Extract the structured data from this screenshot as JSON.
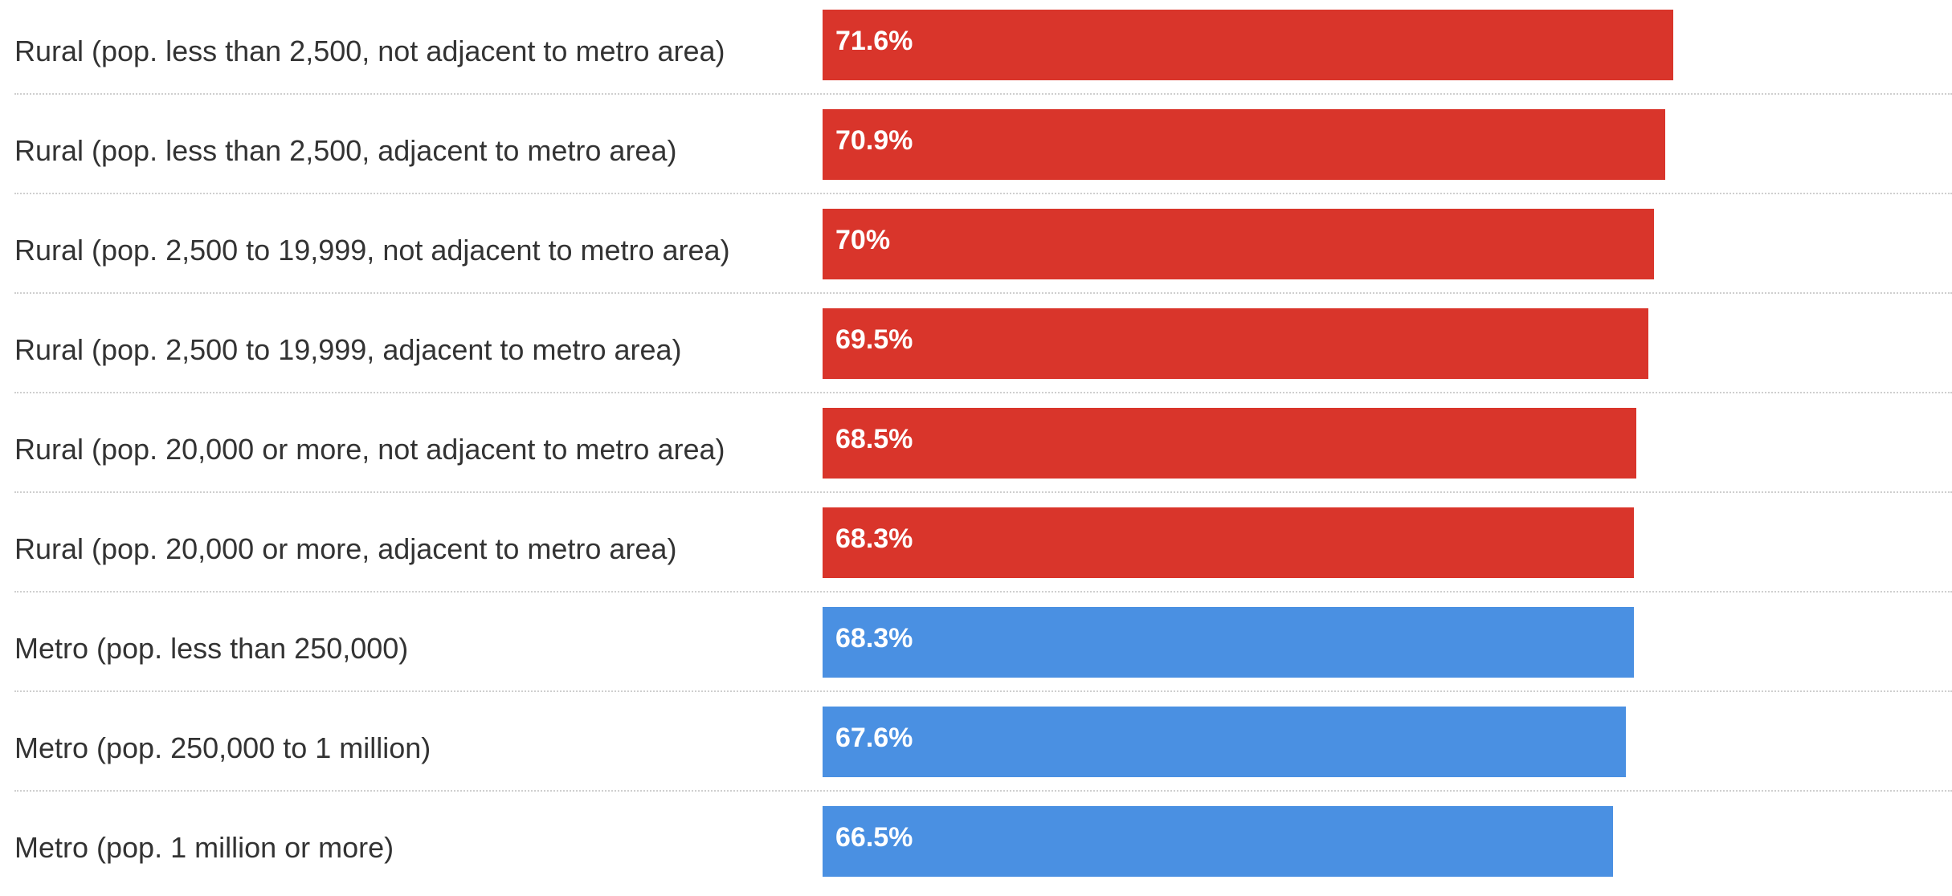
{
  "chart_data": {
    "type": "bar",
    "orientation": "horizontal",
    "categories": [
      "Rural (pop. less than 2,500, not adjacent to metro area)",
      "Rural (pop. less than 2,500, adjacent to metro area)",
      "Rural (pop. 2,500 to 19,999, not adjacent to metro area)",
      "Rural (pop. 2,500 to 19,999, adjacent to metro area)",
      "Rural (pop. 20,000 or more, not adjacent to metro area)",
      "Rural (pop. 20,000 or more, adjacent to metro area)",
      "Metro (pop. less than 250,000)",
      "Metro (pop. 250,000 to 1 million)",
      "Metro (pop. 1 million or more)"
    ],
    "values": [
      71.6,
      70.9,
      70,
      69.5,
      68.5,
      68.3,
      68.3,
      67.6,
      66.5
    ],
    "value_labels": [
      "71.6%",
      "70.9%",
      "70%",
      "69.5%",
      "68.5%",
      "68.3%",
      "68.3%",
      "67.6%",
      "66.5%"
    ],
    "bar_colors": [
      "#d9352b",
      "#d9352b",
      "#d9352b",
      "#d9352b",
      "#d9352b",
      "#d9352b",
      "#4a90e2",
      "#4a90e2",
      "#4a90e2"
    ],
    "xlim": [
      0,
      100
    ],
    "grid": false,
    "legend": "none"
  }
}
